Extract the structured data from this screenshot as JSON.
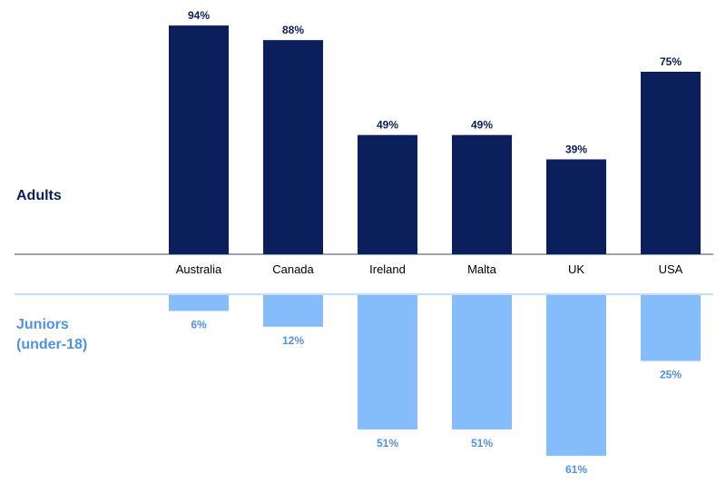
{
  "chart_data": {
    "type": "bar",
    "categories": [
      "Australia",
      "Canada",
      "Ireland",
      "Malta",
      "UK",
      "USA"
    ],
    "series": [
      {
        "name": "Adults",
        "values": [
          94,
          88,
          49,
          49,
          39,
          75
        ],
        "color": "#0a1f5c"
      },
      {
        "name": "Juniors (under-18)",
        "values": [
          6,
          12,
          51,
          51,
          61,
          25
        ],
        "color": "#85bdfa"
      }
    ],
    "group_labels": {
      "adults": "Adults",
      "juniors_line1": "Juniors",
      "juniors_line2": "(under-18)"
    },
    "value_suffix": "%",
    "label_colors": {
      "adults": "#0a1f5c",
      "juniors": "#4f93e3"
    },
    "ylim": [
      0,
      100
    ],
    "layout": "diverging"
  }
}
